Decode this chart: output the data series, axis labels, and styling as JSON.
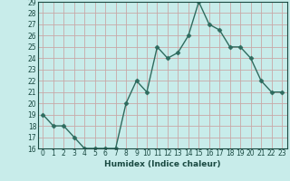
{
  "xlabel": "Humidex (Indice chaleur)",
  "x": [
    0,
    1,
    2,
    3,
    4,
    5,
    6,
    7,
    8,
    9,
    10,
    11,
    12,
    13,
    14,
    15,
    16,
    17,
    18,
    19,
    20,
    21,
    22,
    23
  ],
  "y": [
    19,
    18,
    18,
    17,
    16,
    16,
    16,
    16,
    20,
    22,
    21,
    25,
    24,
    24.5,
    26,
    29,
    27,
    26.5,
    25,
    25,
    24,
    22,
    21,
    21
  ],
  "ylim": [
    16,
    29
  ],
  "xlim_min": -0.5,
  "xlim_max": 23.5,
  "yticks": [
    16,
    17,
    18,
    19,
    20,
    21,
    22,
    23,
    24,
    25,
    26,
    27,
    28,
    29
  ],
  "xticks": [
    0,
    1,
    2,
    3,
    4,
    5,
    6,
    7,
    8,
    9,
    10,
    11,
    12,
    13,
    14,
    15,
    16,
    17,
    18,
    19,
    20,
    21,
    22,
    23
  ],
  "line_color": "#2e6b5e",
  "bg_color": "#c8ecea",
  "grid_color": "#c8a8a8",
  "text_color": "#1a4a42",
  "marker": "D",
  "marker_size": 2.5,
  "line_width": 1.0,
  "tick_fontsize": 5.5,
  "xlabel_fontsize": 6.5
}
